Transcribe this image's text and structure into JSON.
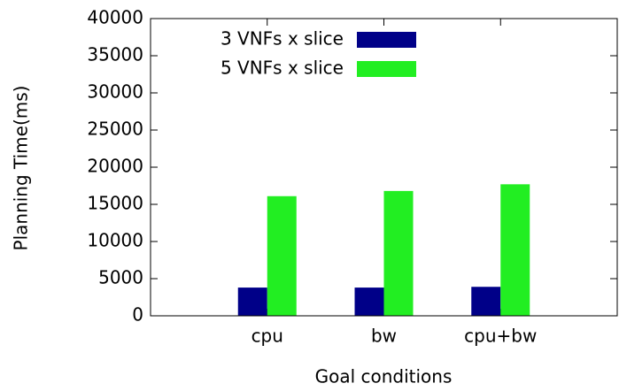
{
  "chart_data": {
    "type": "bar",
    "xlabel": "Goal conditions",
    "ylabel": "Planning Time(ms)",
    "categories": [
      "cpu",
      "bw",
      "cpu+bw"
    ],
    "series": [
      {
        "name": "3 VNFs x slice",
        "color": "#000088",
        "values": [
          3800,
          3800,
          3900
        ]
      },
      {
        "name": "5 VNFs x slice",
        "color": "#22ee22",
        "values": [
          16100,
          16800,
          17700
        ]
      }
    ],
    "ylim": [
      0,
      40000
    ],
    "yticks": [
      0,
      5000,
      10000,
      15000,
      20000,
      25000,
      30000,
      35000,
      40000
    ],
    "legend": "top-left"
  }
}
